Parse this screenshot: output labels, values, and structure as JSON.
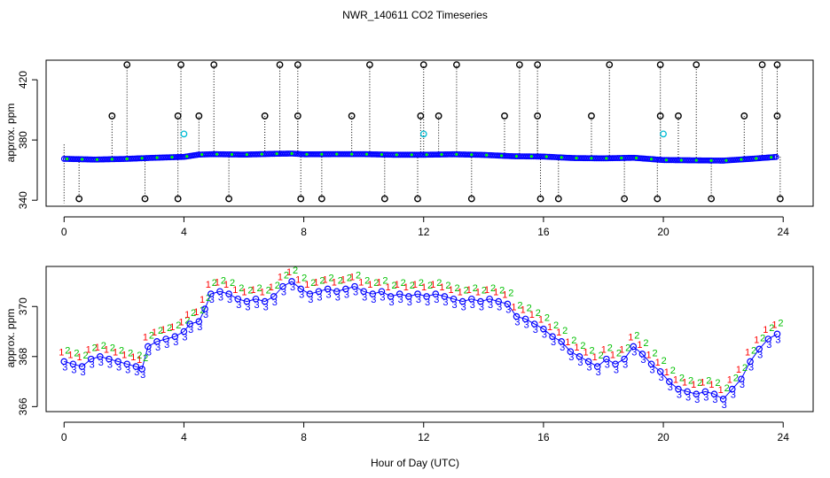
{
  "page_title": "NWR_140611  CO2 Timeseries",
  "colors": {
    "cal": "#000000",
    "flask": "#0000ff",
    "ring": "#00bcd4",
    "s1": "#ff0000",
    "s2": "#00c000",
    "s3": "#0000ff",
    "overlay": "#00ff00",
    "grid": "#000000"
  },
  "chart_data": [
    {
      "type": "scatter",
      "title": "NWR_140611  CO2 Timeseries",
      "xlabel": "",
      "ylabel": "approx. ppm",
      "xlim": [
        -0.6,
        25.0
      ],
      "ylim": [
        336,
        433
      ],
      "xticks": [
        0,
        4,
        8,
        12,
        16,
        20,
        24
      ],
      "yticks": [
        340,
        380,
        420
      ],
      "tick_labels_x": [
        "0",
        "4",
        "8",
        "12",
        "16",
        "20",
        "24"
      ],
      "tick_labels_y": [
        "340",
        "380",
        "420"
      ],
      "baseline": [
        [
          0.0,
          367.5
        ],
        [
          1.0,
          367.0
        ],
        [
          2.0,
          367.4
        ],
        [
          3.0,
          368.2
        ],
        [
          4.0,
          368.8
        ],
        [
          4.5,
          370.3
        ],
        [
          5.0,
          370.6
        ],
        [
          6.0,
          370.3
        ],
        [
          7.0,
          370.8
        ],
        [
          7.6,
          371.0
        ],
        [
          8.0,
          370.5
        ],
        [
          9.0,
          370.6
        ],
        [
          10.0,
          370.6
        ],
        [
          11.0,
          370.2
        ],
        [
          12.0,
          370.2
        ],
        [
          13.0,
          370.5
        ],
        [
          14.0,
          370.1
        ],
        [
          15.0,
          369.2
        ],
        [
          16.0,
          369.0
        ],
        [
          17.0,
          368.0
        ],
        [
          18.0,
          367.8
        ],
        [
          19.0,
          368.2
        ],
        [
          20.0,
          366.7
        ],
        [
          21.0,
          366.5
        ],
        [
          22.0,
          366.3
        ],
        [
          23.0,
          367.6
        ],
        [
          23.8,
          368.8
        ]
      ],
      "high_points": [
        2.1,
        3.9,
        5.0,
        7.2,
        7.8,
        10.2,
        12.0,
        13.1,
        15.2,
        15.8,
        18.2,
        19.9,
        21.1,
        23.3,
        23.8
      ],
      "mid_points": [
        1.6,
        3.8,
        4.5,
        6.7,
        7.8,
        9.6,
        11.9,
        12.5,
        14.7,
        15.8,
        17.6,
        19.9,
        20.5,
        22.7,
        23.8
      ],
      "low_points": [
        0.5,
        2.7,
        3.8,
        5.5,
        7.9,
        8.6,
        10.7,
        11.8,
        13.6,
        15.9,
        16.5,
        18.7,
        19.8,
        21.6,
        23.9
      ],
      "high_value": 430,
      "mid_value": 396,
      "low_value": 341,
      "ring_points": [
        [
          4.0,
          384
        ],
        [
          12.0,
          384
        ],
        [
          20.0,
          384
        ]
      ]
    },
    {
      "type": "scatter",
      "xlabel": "Hour of Day (UTC)",
      "ylabel": "approx. ppm",
      "xlim": [
        -0.6,
        25.0
      ],
      "ylim": [
        365.8,
        371.6
      ],
      "xticks": [
        0,
        4,
        8,
        12,
        16,
        20,
        24
      ],
      "yticks": [
        366,
        368,
        370
      ],
      "tick_labels_x": [
        "0",
        "4",
        "8",
        "12",
        "16",
        "20",
        "24"
      ],
      "tick_labels_y": [
        "366",
        "368",
        "370"
      ],
      "marker_labels": [
        "1",
        "2",
        "3"
      ],
      "series_points": [
        [
          0.0,
          367.8
        ],
        [
          0.3,
          367.7
        ],
        [
          0.6,
          367.6
        ],
        [
          0.9,
          367.9
        ],
        [
          1.2,
          368.0
        ],
        [
          1.5,
          367.9
        ],
        [
          1.8,
          367.8
        ],
        [
          2.1,
          367.7
        ],
        [
          2.4,
          367.6
        ],
        [
          2.6,
          367.5
        ],
        [
          2.8,
          368.4
        ],
        [
          3.1,
          368.6
        ],
        [
          3.4,
          368.7
        ],
        [
          3.7,
          368.8
        ],
        [
          4.0,
          369.0
        ],
        [
          4.2,
          369.3
        ],
        [
          4.5,
          369.4
        ],
        [
          4.7,
          369.9
        ],
        [
          4.9,
          370.5
        ],
        [
          5.2,
          370.6
        ],
        [
          5.5,
          370.5
        ],
        [
          5.8,
          370.3
        ],
        [
          6.1,
          370.2
        ],
        [
          6.4,
          370.3
        ],
        [
          6.7,
          370.2
        ],
        [
          7.0,
          370.4
        ],
        [
          7.3,
          370.8
        ],
        [
          7.6,
          371.0
        ],
        [
          7.9,
          370.7
        ],
        [
          8.2,
          370.5
        ],
        [
          8.5,
          370.6
        ],
        [
          8.8,
          370.7
        ],
        [
          9.1,
          370.6
        ],
        [
          9.4,
          370.7
        ],
        [
          9.7,
          370.8
        ],
        [
          10.0,
          370.6
        ],
        [
          10.3,
          370.5
        ],
        [
          10.6,
          370.6
        ],
        [
          10.9,
          370.4
        ],
        [
          11.2,
          370.5
        ],
        [
          11.5,
          370.4
        ],
        [
          11.8,
          370.5
        ],
        [
          12.1,
          370.4
        ],
        [
          12.4,
          370.5
        ],
        [
          12.7,
          370.4
        ],
        [
          13.0,
          370.3
        ],
        [
          13.3,
          370.2
        ],
        [
          13.6,
          370.3
        ],
        [
          13.9,
          370.2
        ],
        [
          14.2,
          370.3
        ],
        [
          14.5,
          370.2
        ],
        [
          14.8,
          370.1
        ],
        [
          15.1,
          369.6
        ],
        [
          15.4,
          369.5
        ],
        [
          15.7,
          369.3
        ],
        [
          16.0,
          369.1
        ],
        [
          16.3,
          368.8
        ],
        [
          16.6,
          368.6
        ],
        [
          16.9,
          368.2
        ],
        [
          17.2,
          368.0
        ],
        [
          17.5,
          367.8
        ],
        [
          17.8,
          367.6
        ],
        [
          18.1,
          367.9
        ],
        [
          18.4,
          367.7
        ],
        [
          18.7,
          367.9
        ],
        [
          19.0,
          368.4
        ],
        [
          19.3,
          368.1
        ],
        [
          19.6,
          367.7
        ],
        [
          19.9,
          367.4
        ],
        [
          20.2,
          367.0
        ],
        [
          20.5,
          366.7
        ],
        [
          20.8,
          366.6
        ],
        [
          21.1,
          366.5
        ],
        [
          21.4,
          366.6
        ],
        [
          21.7,
          366.5
        ],
        [
          22.0,
          366.3
        ],
        [
          22.3,
          366.7
        ],
        [
          22.6,
          367.1
        ],
        [
          22.9,
          367.8
        ],
        [
          23.2,
          368.3
        ],
        [
          23.5,
          368.7
        ],
        [
          23.8,
          368.9
        ]
      ]
    }
  ]
}
